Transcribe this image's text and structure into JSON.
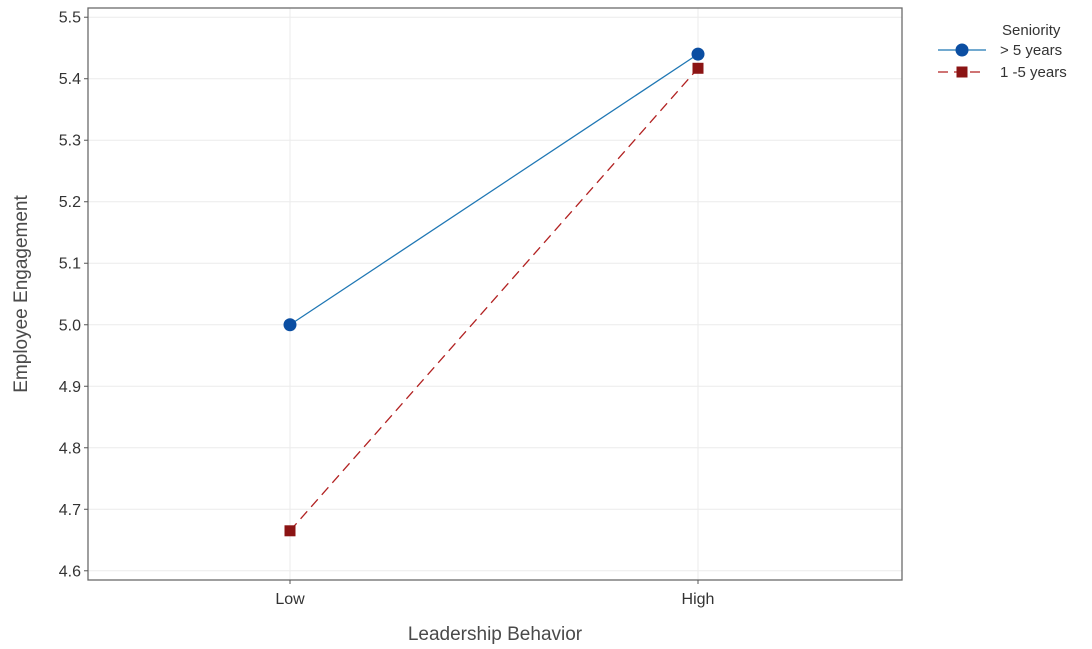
{
  "chart_data": {
    "type": "line",
    "title": "",
    "xlabel": "Leadership Behavior",
    "ylabel": "Employee Engagement",
    "categories": [
      "Low",
      "High"
    ],
    "ylim": [
      4.585,
      5.515
    ],
    "yticks": [
      "4.6",
      "4.7",
      "4.8",
      "4.9",
      "5.0",
      "5.1",
      "5.2",
      "5.3",
      "5.4",
      "5.5"
    ],
    "grid": true,
    "legend": {
      "title": "Seniority",
      "position": "right-top"
    },
    "series": [
      {
        "name": "> 5 years",
        "values": [
          5.0,
          5.44
        ],
        "color": "#1f77b4",
        "marker_color": "#0b4ea2",
        "marker": "circle",
        "line_style": "solid"
      },
      {
        "name": "1 -5 years",
        "values": [
          4.665,
          5.417
        ],
        "color": "#b22222",
        "marker_color": "#8b1414",
        "marker": "square",
        "line_style": "dashed"
      }
    ]
  }
}
